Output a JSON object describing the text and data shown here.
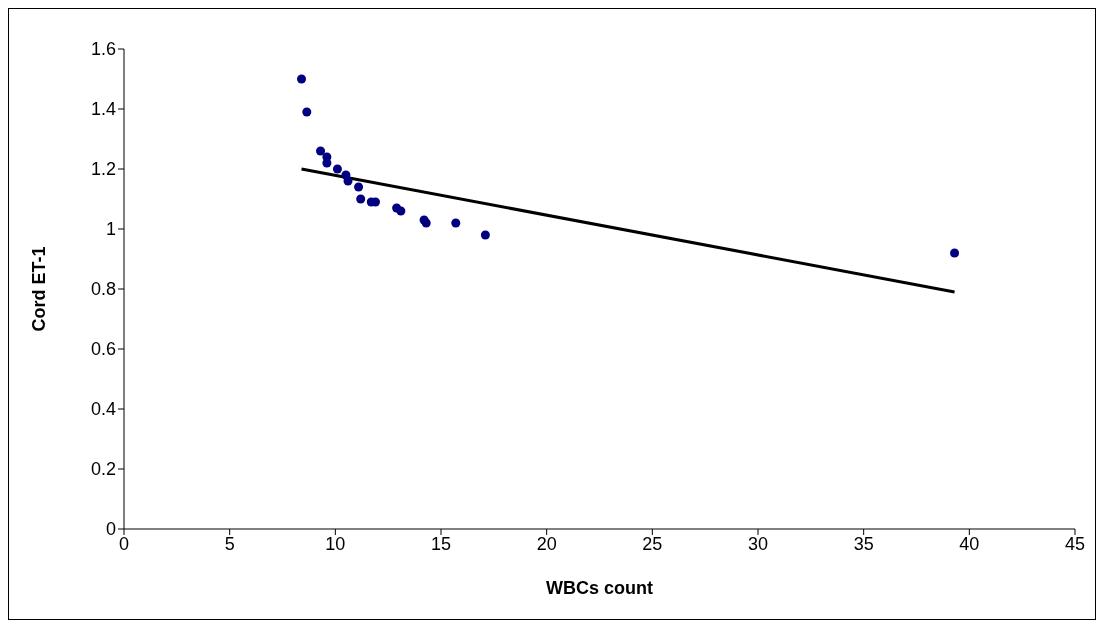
{
  "chart_data": {
    "type": "scatter",
    "xlabel": "WBCs count",
    "ylabel": "Cord ET-1",
    "xlim": [
      0,
      45
    ],
    "xticks": [
      0,
      5,
      10,
      15,
      20,
      25,
      30,
      35,
      40,
      45
    ],
    "ylim": [
      0,
      1.6
    ],
    "yticks": [
      0,
      0.2,
      0.4,
      0.6,
      0.8,
      1,
      1.2,
      1.4,
      1.6
    ],
    "grid": false,
    "legend": false,
    "series": [
      {
        "marker": "circle",
        "color": "#000080",
        "x": [
          8.4,
          8.65,
          9.3,
          9.6,
          9.6,
          10.1,
          10.5,
          10.6,
          11.1,
          11.2,
          11.7,
          11.9,
          12.9,
          13.1,
          14.2,
          14.3,
          15.7,
          17.1,
          39.3
        ],
        "values": [
          1.5,
          1.39,
          1.26,
          1.24,
          1.22,
          1.2,
          1.18,
          1.16,
          1.14,
          1.1,
          1.09,
          1.09,
          1.07,
          1.06,
          1.03,
          1.02,
          1.02,
          0.98,
          0.92
        ]
      },
      {
        "type": "line",
        "marker": "none",
        "color": "#000000",
        "x": [
          8.4,
          39.3
        ],
        "values": [
          1.2,
          0.79
        ]
      }
    ]
  }
}
